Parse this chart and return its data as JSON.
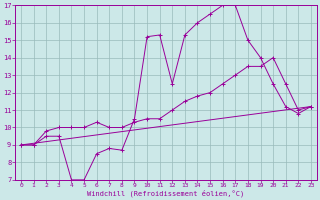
{
  "xlabel": "Windchill (Refroidissement éolien,°C)",
  "background_color": "#cce8e8",
  "line_color": "#990099",
  "grid_color": "#99bbbb",
  "xlim": [
    -0.5,
    23.5
  ],
  "ylim": [
    7,
    17
  ],
  "yticks": [
    7,
    8,
    9,
    10,
    11,
    12,
    13,
    14,
    15,
    16,
    17
  ],
  "xticks": [
    0,
    1,
    2,
    3,
    4,
    5,
    6,
    7,
    8,
    9,
    10,
    11,
    12,
    13,
    14,
    15,
    16,
    17,
    18,
    19,
    20,
    21,
    22,
    23
  ],
  "line1_x": [
    0,
    1,
    2,
    3,
    4,
    5,
    6,
    7,
    8,
    9,
    10,
    11,
    12,
    13,
    14,
    15,
    16,
    17,
    18,
    19,
    20,
    21,
    22,
    23
  ],
  "line1_y": [
    9,
    9,
    9.5,
    9.5,
    7,
    7,
    8.5,
    8.8,
    8.7,
    10.5,
    15.2,
    15.3,
    12.5,
    15.3,
    16,
    16.5,
    17,
    17,
    15,
    14,
    12.5,
    11.2,
    10.8,
    11.2
  ],
  "line2_x": [
    0,
    1,
    2,
    3,
    4,
    5,
    6,
    7,
    8,
    9,
    10,
    11,
    12,
    13,
    14,
    15,
    16,
    17,
    18,
    19,
    20,
    21,
    22,
    23
  ],
  "line2_y": [
    9,
    9,
    9.8,
    10,
    10,
    10,
    10.3,
    10,
    10,
    10.3,
    10.5,
    10.5,
    11,
    11.5,
    11.8,
    12,
    12.5,
    13,
    13.5,
    13.5,
    14,
    12.5,
    11,
    11.2
  ],
  "line3_x": [
    0,
    23
  ],
  "line3_y": [
    9,
    11.2
  ]
}
